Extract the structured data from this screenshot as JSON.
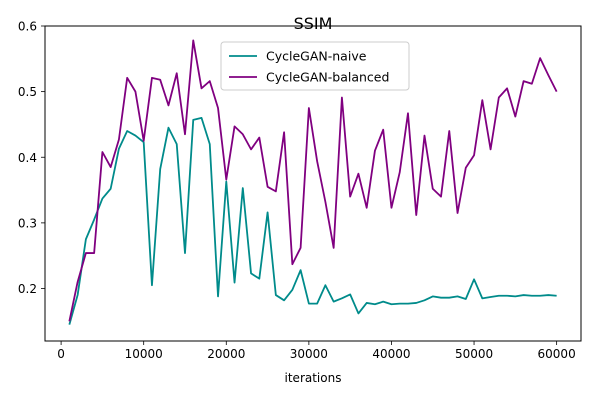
{
  "chart_data": {
    "type": "line",
    "title": "SSIM",
    "xlabel": "iterations",
    "ylabel": "",
    "xlim": [
      -1950,
      62950
    ],
    "ylim": [
      0.12,
      0.6
    ],
    "xticks": [
      0,
      10000,
      20000,
      30000,
      40000,
      50000,
      60000
    ],
    "yticks": [
      0.2,
      0.3,
      0.4,
      0.5,
      0.6
    ],
    "grid": false,
    "legend": "upper-center",
    "x": [
      1000,
      2000,
      3000,
      4000,
      5000,
      6000,
      7000,
      8000,
      9000,
      10000,
      11000,
      12000,
      13000,
      14000,
      15000,
      16000,
      17000,
      18000,
      19000,
      20000,
      21000,
      22000,
      23000,
      24000,
      25000,
      26000,
      27000,
      28000,
      29000,
      30000,
      31000,
      32000,
      33000,
      34000,
      35000,
      36000,
      37000,
      38000,
      39000,
      40000,
      41000,
      42000,
      43000,
      44000,
      45000,
      46000,
      47000,
      48000,
      49000,
      50000,
      51000,
      52000,
      53000,
      54000,
      55000,
      56000,
      57000,
      58000,
      59000,
      60000
    ],
    "series": [
      {
        "name": "CycleGAN-naive",
        "color": "#008b8b",
        "values": [
          0.145,
          0.19,
          0.275,
          0.305,
          0.337,
          0.352,
          0.413,
          0.44,
          0.433,
          0.423,
          0.205,
          0.382,
          0.445,
          0.42,
          0.254,
          0.457,
          0.46,
          0.42,
          0.188,
          0.363,
          0.209,
          0.353,
          0.223,
          0.215,
          0.316,
          0.19,
          0.182,
          0.198,
          0.228,
          0.177,
          0.177,
          0.205,
          0.18,
          0.185,
          0.191,
          0.162,
          0.178,
          0.176,
          0.18,
          0.176,
          0.177,
          0.177,
          0.178,
          0.182,
          0.188,
          0.186,
          0.186,
          0.188,
          0.184,
          0.214,
          0.185,
          0.187,
          0.189,
          0.189,
          0.188,
          0.19,
          0.189,
          0.189,
          0.19,
          0.189
        ]
      },
      {
        "name": "CycleGAN-balanced",
        "color": "#800080",
        "values": [
          0.15,
          0.21,
          0.254,
          0.254,
          0.408,
          0.385,
          0.427,
          0.521,
          0.5,
          0.425,
          0.521,
          0.518,
          0.479,
          0.528,
          0.435,
          0.578,
          0.505,
          0.516,
          0.475,
          0.366,
          0.447,
          0.435,
          0.412,
          0.43,
          0.355,
          0.348,
          0.438,
          0.237,
          0.262,
          0.475,
          0.394,
          0.332,
          0.262,
          0.491,
          0.34,
          0.375,
          0.323,
          0.41,
          0.442,
          0.323,
          0.377,
          0.467,
          0.312,
          0.433,
          0.352,
          0.34,
          0.44,
          0.315,
          0.384,
          0.403,
          0.487,
          0.412,
          0.491,
          0.505,
          0.462,
          0.516,
          0.512,
          0.551,
          0.525,
          0.5
        ]
      }
    ]
  }
}
